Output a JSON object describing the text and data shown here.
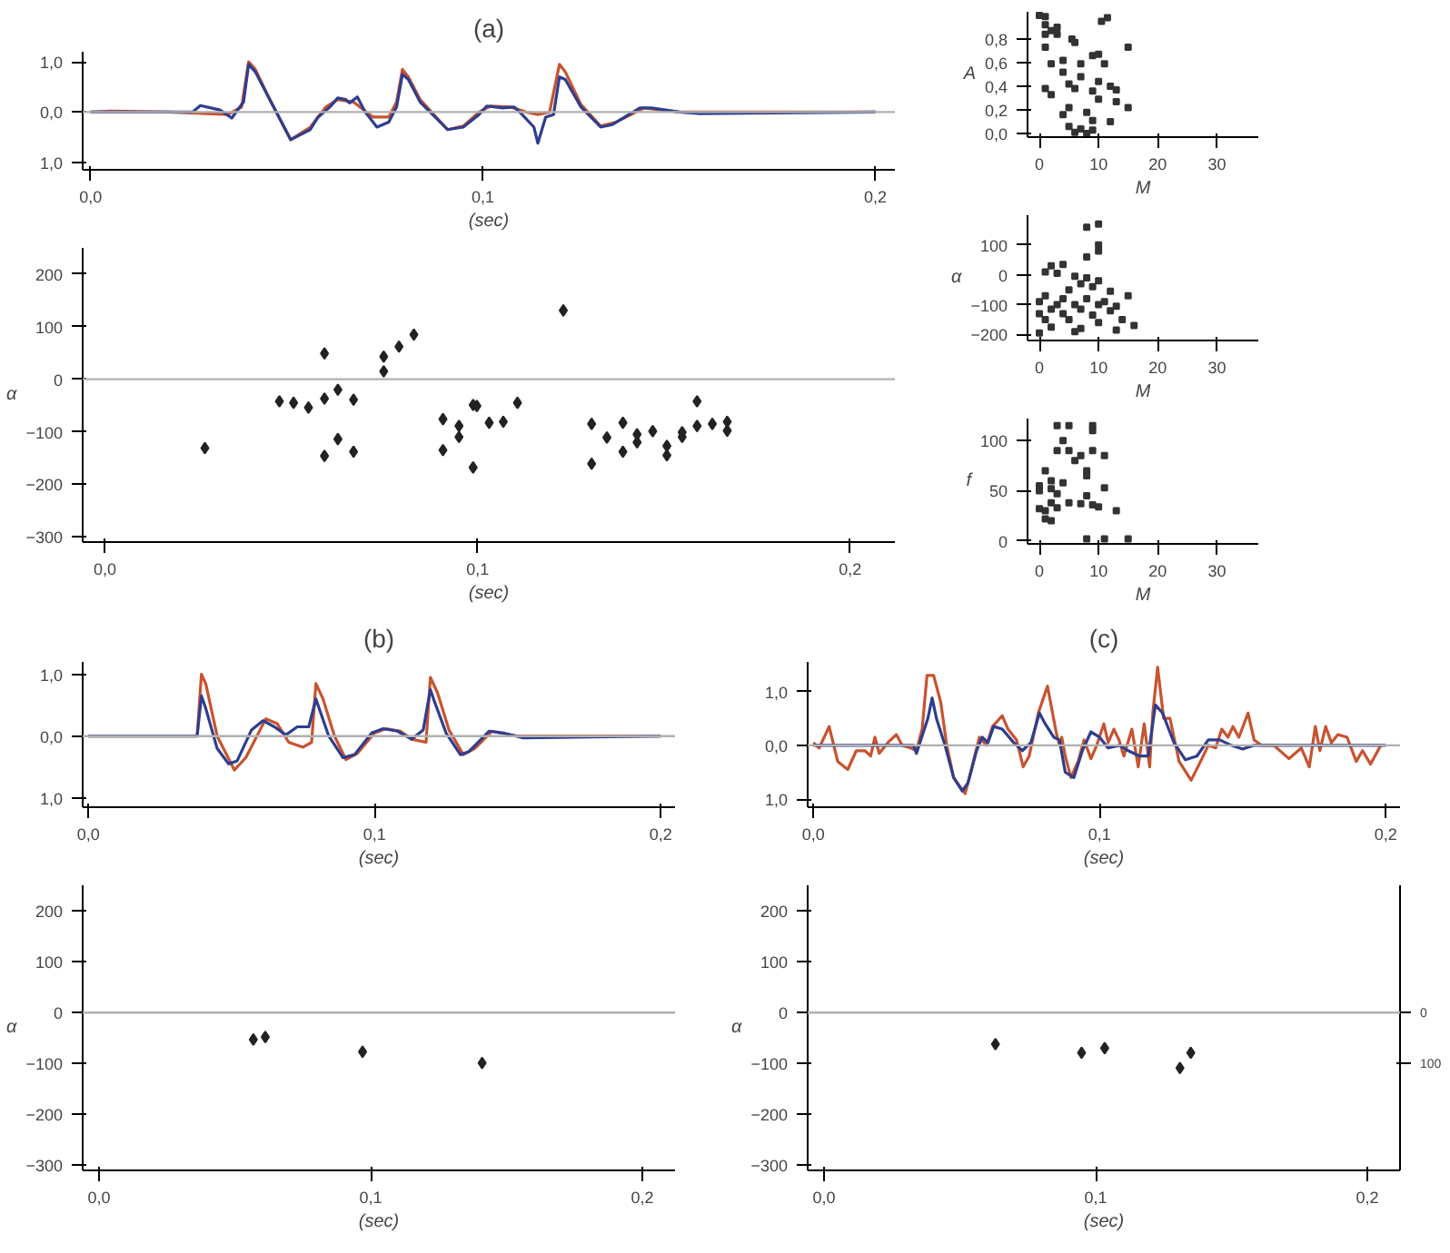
{
  "chart_data": [
    {
      "type": "line",
      "title": "(a)",
      "xlabel": "(sec)",
      "line_style": "solid",
      "xlim": [
        -0.002,
        0.205
      ],
      "ylim": [
        -1.15,
        1.2
      ],
      "xticks": [
        {
          "value": 0,
          "label": "0,0"
        },
        {
          "value": 0.1,
          "label": "0,1"
        },
        {
          "value": 0.2,
          "label": "0,2"
        }
      ],
      "yticks": [
        {
          "value": -1,
          "label": "1,0"
        },
        {
          "value": 0,
          "label": "0,0"
        },
        {
          "value": 1,
          "label": "1,0"
        }
      ],
      "ref_lines": [
        {
          "axis": "y",
          "value": 0,
          "color": "#b0b0b0"
        }
      ],
      "series": [
        {
          "color": "#c8532f",
          "x": [
            0,
            0.005,
            0.02,
            0.035,
            0.0385,
            0.0403,
            0.042,
            0.046,
            0.051,
            0.056,
            0.06,
            0.063,
            0.067,
            0.072,
            0.076,
            0.078,
            0.0795,
            0.081,
            0.084,
            0.091,
            0.095,
            0.099,
            0.102,
            0.107,
            0.111,
            0.114,
            0.117,
            0.1195,
            0.121,
            0.125,
            0.13,
            0.134,
            0.141,
            0.15,
            0.2
          ],
          "values": [
            0,
            0.02,
            0,
            -0.05,
            0.1,
            1.0,
            0.85,
            0.2,
            -0.55,
            -0.3,
            0.1,
            0.25,
            0.2,
            -0.1,
            -0.1,
            0.2,
            0.85,
            0.7,
            0.25,
            -0.35,
            -0.28,
            0,
            0.12,
            0.1,
            0,
            -0.05,
            0,
            0.95,
            0.8,
            0.15,
            -0.28,
            -0.2,
            0.08,
            0,
            0
          ]
        },
        {
          "color": "#2e3d8f",
          "x": [
            0,
            0.02,
            0.026,
            0.028,
            0.033,
            0.036,
            0.039,
            0.0403,
            0.042,
            0.046,
            0.051,
            0.056,
            0.058,
            0.061,
            0.063,
            0.065,
            0.066,
            0.068,
            0.07,
            0.073,
            0.076,
            0.078,
            0.0795,
            0.081,
            0.084,
            0.091,
            0.095,
            0.099,
            0.101,
            0.105,
            0.108,
            0.11,
            0.113,
            0.114,
            0.116,
            0.118,
            0.1195,
            0.121,
            0.125,
            0.13,
            0.133,
            0.14,
            0.143,
            0.15,
            0.155,
            0.2
          ],
          "values": [
            0,
            0,
            0,
            0.13,
            0.04,
            -0.12,
            0.2,
            0.95,
            0.8,
            0.2,
            -0.55,
            -0.35,
            -0.1,
            0.1,
            0.28,
            0.25,
            0.18,
            0.3,
            0,
            -0.3,
            -0.2,
            0.1,
            0.75,
            0.65,
            0.2,
            -0.35,
            -0.3,
            -0.05,
            0.12,
            0.08,
            0.1,
            -0.05,
            -0.3,
            -0.62,
            -0.1,
            -0.05,
            0.7,
            0.65,
            0.1,
            -0.3,
            -0.25,
            0.08,
            0.08,
            0,
            -0.03,
            0
          ]
        }
      ]
    },
    {
      "type": "scatter",
      "marker": "diamond",
      "ylabel": "α",
      "xlabel": "(sec)",
      "xlim": [
        -0.006,
        0.212
      ],
      "ylim": [
        -310,
        250
      ],
      "xticks": [
        {
          "value": 0,
          "label": "0,0"
        },
        {
          "value": 0.1,
          "label": "0,1"
        },
        {
          "value": 0.2,
          "label": "0,2"
        }
      ],
      "yticks": [
        -300,
        -200,
        -100,
        0,
        100,
        200
      ],
      "ref_lines": [
        {
          "axis": "y",
          "value": 0,
          "color": "#b0b0b0"
        }
      ],
      "series": [
        {
          "color": "#222222",
          "x": [
            0.0268,
            0.0468,
            0.0506,
            0.0546,
            0.0589,
            0.0589,
            0.0589,
            0.0625,
            0.0625,
            0.0667,
            0.0667,
            0.0748,
            0.0748,
            0.0789,
            0.0829,
            0.0907,
            0.0907,
            0.095,
            0.095,
            0.0988,
            0.0998,
            0.0988,
            0.1031,
            0.1069,
            0.1107,
            0.123,
            0.1306,
            0.1306,
            0.1347,
            0.139,
            0.139,
            0.1428,
            0.1428,
            0.147,
            0.1508,
            0.1508,
            0.1549,
            0.1549,
            0.1589,
            0.1589,
            0.163,
            0.167,
            0.167
          ],
          "values": [
            -131,
            -42,
            -45,
            -54,
            49,
            -37,
            -146,
            -20,
            -114,
            -39,
            -138,
            43,
            15,
            62,
            85,
            -76,
            -135,
            -89,
            -110,
            -49,
            -51,
            -168,
            -83,
            -81,
            -45,
            131,
            -85,
            -161,
            -111,
            -83,
            -138,
            -105,
            -120,
            -99,
            -127,
            -145,
            -101,
            -110,
            -42,
            -89,
            -85,
            -81,
            -98
          ]
        }
      ]
    },
    {
      "type": "scatter",
      "marker": "square",
      "ylabel": "A",
      "xlabel": "M",
      "xlim": [
        -2,
        37
      ],
      "ylim": [
        -0.03,
        1.03
      ],
      "xticks": [
        0,
        10,
        20,
        30
      ],
      "yticks": [
        {
          "value": 0,
          "label": "0,0"
        },
        {
          "value": 0.2,
          "label": "0,2"
        },
        {
          "value": 0.4,
          "label": "0,4"
        },
        {
          "value": 0.6,
          "label": "0,6"
        },
        {
          "value": 0.8,
          "label": "0,8"
        }
      ],
      "series": [
        {
          "color": "#333333",
          "x": [
            0,
            1,
            11.5,
            10.5,
            1,
            3,
            2,
            1,
            3,
            5.5,
            6,
            1,
            15,
            10,
            9,
            4,
            2,
            7,
            11,
            4,
            7,
            10,
            5,
            12,
            1,
            6,
            9,
            13,
            2,
            10,
            13,
            15,
            5,
            8,
            4,
            9,
            12,
            5,
            7,
            9,
            6,
            8
          ],
          "values": [
            1.0,
            0.99,
            0.98,
            0.95,
            0.92,
            0.9,
            0.87,
            0.84,
            0.84,
            0.8,
            0.77,
            0.73,
            0.73,
            0.67,
            0.66,
            0.62,
            0.59,
            0.59,
            0.59,
            0.52,
            0.48,
            0.44,
            0.42,
            0.4,
            0.38,
            0.38,
            0.36,
            0.37,
            0.33,
            0.29,
            0.27,
            0.22,
            0.22,
            0.18,
            0.16,
            0.11,
            0.1,
            0.06,
            0.04,
            0.03,
            0.01,
            0.0
          ]
        }
      ]
    },
    {
      "type": "scatter",
      "marker": "square",
      "ylabel": "α",
      "xlabel": "M",
      "xlim": [
        -2,
        37
      ],
      "ylim": [
        -220,
        200
      ],
      "xticks": [
        0,
        10,
        20,
        30
      ],
      "yticks": [
        -200,
        -100,
        0,
        100
      ],
      "series": [
        {
          "color": "#333333",
          "x": [
            10,
            8,
            10,
            10,
            8,
            4,
            2,
            1,
            3,
            6,
            8,
            10,
            7,
            9,
            5,
            12,
            15,
            1,
            4,
            8,
            11,
            0,
            3,
            6,
            10,
            13,
            2,
            7,
            12,
            0,
            4,
            9,
            1,
            5,
            14,
            10,
            16,
            2,
            7,
            13,
            0,
            6
          ],
          "values": [
            170,
            160,
            100,
            80,
            60,
            35,
            30,
            10,
            5,
            -5,
            -10,
            -20,
            -30,
            -40,
            -50,
            -55,
            -70,
            -70,
            -80,
            -80,
            -90,
            -90,
            -100,
            -100,
            -100,
            -105,
            -115,
            -115,
            -120,
            -130,
            -130,
            -135,
            -150,
            -150,
            -150,
            -160,
            -170,
            -175,
            -180,
            -185,
            -195,
            -190
          ]
        }
      ]
    },
    {
      "type": "scatter",
      "marker": "square",
      "ylabel": "f",
      "xlabel": "M",
      "xlim": [
        -2,
        37
      ],
      "ylim": [
        -3,
        122
      ],
      "xticks": [
        0,
        10,
        20,
        30
      ],
      "yticks": [
        0,
        50,
        100
      ],
      "series": [
        {
          "color": "#333333",
          "x": [
            3,
            5,
            9,
            9,
            4,
            3,
            5,
            7,
            6,
            9,
            11,
            1,
            8,
            8,
            2,
            4,
            0,
            2,
            0,
            3,
            8,
            11,
            2,
            5,
            7,
            9,
            10,
            0,
            1,
            3,
            13,
            1,
            2,
            8,
            11,
            15
          ],
          "values": [
            115,
            115,
            115,
            110,
            100,
            90,
            90,
            85,
            80,
            90,
            85,
            70,
            70,
            65,
            60,
            58,
            55,
            52,
            50,
            47,
            45,
            53,
            38,
            38,
            37,
            36,
            34,
            32,
            30,
            33,
            30,
            22,
            20,
            2,
            2,
            2
          ]
        }
      ]
    },
    {
      "type": "line",
      "title": "(b)",
      "xlabel": "(sec)",
      "line_style": "solid",
      "xlim": [
        -0.002,
        0.205
      ],
      "ylim": [
        -1.15,
        1.2
      ],
      "xticks": [
        {
          "value": 0,
          "label": "0,0"
        },
        {
          "value": 0.1,
          "label": "0,1"
        },
        {
          "value": 0.2,
          "label": "0,2"
        }
      ],
      "yticks": [
        {
          "value": -1,
          "label": "1,0"
        },
        {
          "value": 0,
          "label": "0,0"
        },
        {
          "value": 1,
          "label": "1,0"
        }
      ],
      "ref_lines": [
        {
          "axis": "y",
          "value": 0,
          "color": "#b0b0b0"
        }
      ],
      "series": [
        {
          "color": "#c8532f",
          "x": [
            0,
            0.038,
            0.0395,
            0.041,
            0.045,
            0.051,
            0.055,
            0.062,
            0.066,
            0.07,
            0.075,
            0.078,
            0.0795,
            0.082,
            0.086,
            0.09,
            0.094,
            0.1,
            0.104,
            0.109,
            0.113,
            0.118,
            0.1195,
            0.122,
            0.126,
            0.131,
            0.135,
            0.141,
            0.15,
            0.2
          ],
          "values": [
            0,
            0,
            1.0,
            0.85,
            0,
            -0.55,
            -0.35,
            0.28,
            0.2,
            -0.1,
            -0.18,
            -0.1,
            0.85,
            0.6,
            0,
            -0.38,
            -0.28,
            0.05,
            0.12,
            0.08,
            -0.05,
            -0.1,
            0.95,
            0.7,
            0.1,
            -0.3,
            -0.2,
            0.08,
            0,
            0
          ]
        },
        {
          "color": "#2e3d8f",
          "x": [
            0,
            0.038,
            0.0395,
            0.041,
            0.045,
            0.049,
            0.052,
            0.057,
            0.061,
            0.065,
            0.069,
            0.073,
            0.077,
            0.0795,
            0.081,
            0.084,
            0.089,
            0.093,
            0.099,
            0.103,
            0.108,
            0.113,
            0.117,
            0.1195,
            0.121,
            0.125,
            0.13,
            0.133,
            0.14,
            0.145,
            0.152,
            0.2
          ],
          "values": [
            0,
            0,
            0.65,
            0.45,
            -0.2,
            -0.45,
            -0.4,
            0.1,
            0.25,
            0.15,
            0.02,
            0.15,
            0.15,
            0.6,
            0.4,
            0,
            -0.35,
            -0.3,
            0.05,
            0.12,
            0.08,
            -0.05,
            0.1,
            0.75,
            0.55,
            0.05,
            -0.3,
            -0.25,
            0.08,
            0.05,
            -0.03,
            0
          ]
        }
      ]
    },
    {
      "type": "line",
      "title": "(c)",
      "xlabel": "(sec)",
      "line_style": "solid",
      "xlim": [
        -0.002,
        0.205
      ],
      "ylim": [
        -1.15,
        1.55
      ],
      "xticks": [
        {
          "value": 0,
          "label": "0,0"
        },
        {
          "value": 0.1,
          "label": "0,1"
        },
        {
          "value": 0.2,
          "label": "0,2"
        }
      ],
      "yticks": [
        {
          "value": -1,
          "label": "1,0"
        },
        {
          "value": 0,
          "label": "0,0"
        },
        {
          "value": 1,
          "label": "1,0"
        }
      ],
      "ref_lines": [
        {
          "axis": "y",
          "value": 0,
          "color": "#b0b0b0"
        }
      ],
      "series": [
        {
          "color": "#c8532f",
          "x": [
            0,
            0.002,
            0.0055,
            0.0085,
            0.012,
            0.015,
            0.018,
            0.02,
            0.0215,
            0.023,
            0.026,
            0.029,
            0.031,
            0.034,
            0.036,
            0.038,
            0.0397,
            0.042,
            0.0445,
            0.0466,
            0.049,
            0.053,
            0.055,
            0.058,
            0.0605,
            0.0626,
            0.066,
            0.068,
            0.071,
            0.0733,
            0.0754,
            0.0786,
            0.0818,
            0.085,
            0.086,
            0.0868,
            0.088,
            0.09,
            0.0925,
            0.0946,
            0.097,
            0.099,
            0.1015,
            0.103,
            0.105,
            0.1068,
            0.1085,
            0.1113,
            0.1135,
            0.1156,
            0.1175,
            0.1186,
            0.1203,
            0.1224,
            0.1246,
            0.1278,
            0.132,
            0.1353,
            0.138,
            0.1406,
            0.1427,
            0.1449,
            0.1466,
            0.1487,
            0.1519,
            0.154,
            0.1566,
            0.1609,
            0.1662,
            0.1705,
            0.1733,
            0.1754,
            0.177,
            0.179,
            0.181,
            0.1833,
            0.1865,
            0.1897,
            0.1919,
            0.1947,
            0.1983
          ],
          "values": [
            0.05,
            -0.05,
            0.35,
            -0.3,
            -0.45,
            -0.1,
            -0.1,
            -0.2,
            0.15,
            -0.15,
            0.05,
            0.2,
            0,
            -0.05,
            -0.1,
            0.3,
            1.3,
            1.3,
            0.8,
            0,
            -0.6,
            -0.9,
            -0.5,
            0.15,
            0,
            0.35,
            0.55,
            0.3,
            0.1,
            -0.4,
            -0.2,
            0.6,
            1.1,
            0.2,
            0,
            0.15,
            -0.2,
            -0.6,
            -0.3,
            0.1,
            -0.25,
            0,
            0.4,
            0.05,
            0.3,
            0.1,
            -0.2,
            0.3,
            -0.4,
            0.4,
            -0.4,
            0.6,
            1.45,
            0.5,
            0.5,
            -0.3,
            -0.65,
            -0.3,
            0,
            -0.05,
            0.3,
            0.15,
            0.35,
            0.15,
            0.6,
            0.1,
            0,
            0,
            -0.25,
            -0.05,
            -0.4,
            0.35,
            -0.1,
            0.35,
            0.05,
            0.2,
            0.15,
            -0.3,
            -0.1,
            -0.35,
            0
          ]
        },
        {
          "color": "#2e3d8f",
          "x": [
            0,
            0.035,
            0.036,
            0.04,
            0.0415,
            0.043,
            0.046,
            0.049,
            0.052,
            0.054,
            0.057,
            0.059,
            0.061,
            0.063,
            0.066,
            0.07,
            0.073,
            0.076,
            0.079,
            0.081,
            0.084,
            0.086,
            0.088,
            0.091,
            0.094,
            0.097,
            0.1,
            0.103,
            0.107,
            0.11,
            0.114,
            0.117,
            0.1195,
            0.122,
            0.126,
            0.13,
            0.134,
            0.138,
            0.142,
            0.146,
            0.15,
            0.154,
            0.2
          ],
          "values": [
            0,
            0,
            -0.15,
            0.5,
            0.88,
            0.5,
            0,
            -0.6,
            -0.85,
            -0.7,
            -0.1,
            0.15,
            0.05,
            0.35,
            0.3,
            0.05,
            -0.1,
            0.05,
            0.6,
            0.4,
            0.15,
            0.1,
            -0.5,
            -0.6,
            -0.1,
            0.25,
            0.15,
            -0.05,
            0,
            -0.1,
            -0.2,
            -0.2,
            0.75,
            0.6,
            0.05,
            -0.27,
            -0.2,
            0.1,
            0.1,
            0,
            -0.07,
            0,
            0
          ]
        }
      ]
    },
    {
      "type": "scatter",
      "marker": "diamond",
      "ylabel": "α",
      "xlabel": "(sec)",
      "xlim": [
        -0.006,
        0.212
      ],
      "ylim": [
        -310,
        250
      ],
      "xticks": [
        {
          "value": 0,
          "label": "0,0"
        },
        {
          "value": 0.1,
          "label": "0,1"
        },
        {
          "value": 0.2,
          "label": "0,2"
        }
      ],
      "yticks": [
        -300,
        -200,
        -100,
        0,
        100,
        200
      ],
      "ref_lines": [
        {
          "axis": "y",
          "value": 0,
          "color": "#b0b0b0"
        }
      ],
      "series": [
        {
          "color": "#222222",
          "x": [
            0.0568,
            0.0612,
            0.097,
            0.141
          ],
          "values": [
            -53,
            -48,
            -77,
            -99
          ]
        }
      ]
    },
    {
      "type": "scatter",
      "marker": "diamond",
      "ylabel": "α",
      "xlabel": "(sec)",
      "xlim": [
        -0.006,
        0.212
      ],
      "ylim": [
        -310,
        250
      ],
      "y2lim": [
        310,
        -250
      ],
      "y2ticks": [
        0,
        100
      ],
      "xticks": [
        {
          "value": 0,
          "label": "0,0"
        },
        {
          "value": 0.1,
          "label": "0,1"
        },
        {
          "value": 0.2,
          "label": "0,2"
        }
      ],
      "yticks": [
        -300,
        -200,
        -100,
        0,
        100,
        200
      ],
      "ref_lines": [
        {
          "axis": "y",
          "value": 0,
          "color": "#b0b0b0"
        }
      ],
      "series": [
        {
          "color": "#222222",
          "x": [
            0.0631,
            0.0948,
            0.1033,
            0.131,
            0.135
          ],
          "values": [
            -62,
            -79,
            -70,
            -109,
            -79
          ]
        }
      ]
    }
  ]
}
